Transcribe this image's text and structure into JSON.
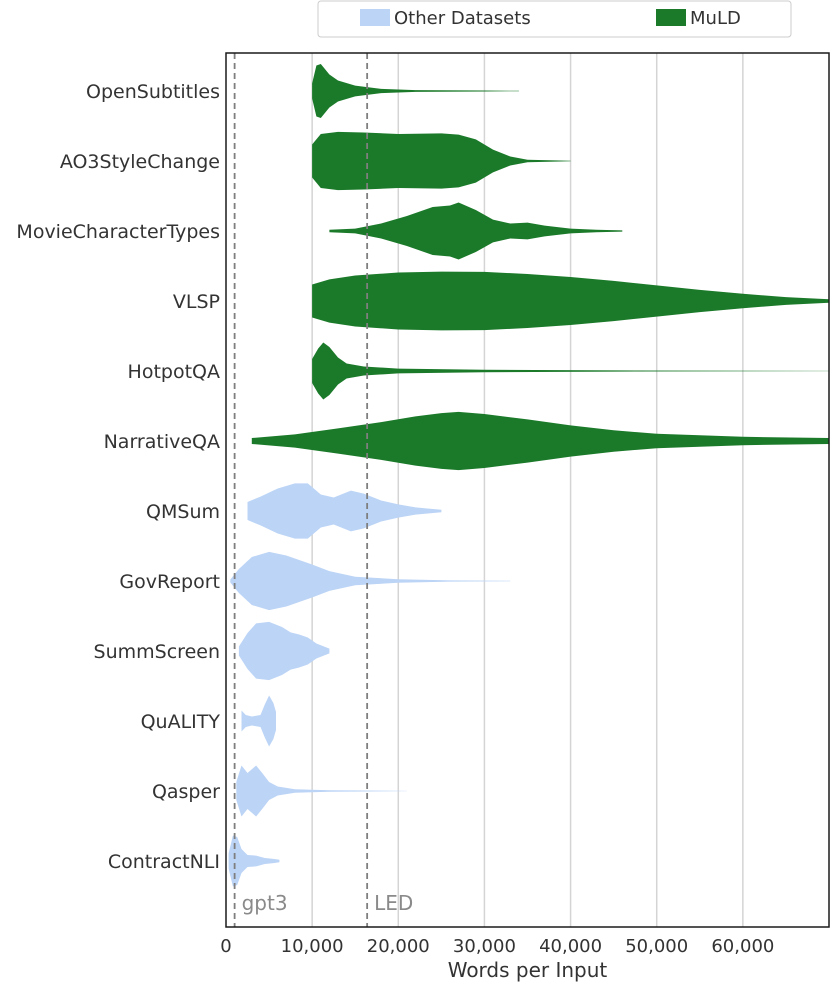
{
  "chart_data": {
    "type": "violin",
    "orientation": "horizontal",
    "xlabel": "Words per Input",
    "xlim": [
      0,
      70000
    ],
    "xticks": [
      0,
      10000,
      20000,
      30000,
      40000,
      50000,
      60000
    ],
    "xtick_labels": [
      "0",
      "10,000",
      "20,000",
      "30,000",
      "40,000",
      "50,000",
      "60,000"
    ],
    "grid": "vertical",
    "legend": {
      "placement": "top",
      "entries": [
        {
          "label": "Other Datasets",
          "color": "#bcd4f6"
        },
        {
          "label": "MuLD",
          "color": "#1b7a2a"
        }
      ]
    },
    "reference_lines": [
      {
        "label": "gpt3",
        "x": 1000
      },
      {
        "label": "LED",
        "x": 16384
      }
    ],
    "categories": [
      "OpenSubtitles",
      "AO3StyleChange",
      "MovieCharacterTypes",
      "VLSP",
      "HotpotQA",
      "NarrativeQA",
      "QMSum",
      "GovReport",
      "SummScreen",
      "QuALITY",
      "Qasper",
      "ContractNLI"
    ],
    "series": [
      {
        "group": "MuLD",
        "category": "OpenSubtitles",
        "color": "#1b7a2a",
        "profile": [
          [
            10000,
            0.25
          ],
          [
            10500,
            0.85
          ],
          [
            11000,
            0.9
          ],
          [
            12000,
            0.55
          ],
          [
            13000,
            0.35
          ],
          [
            15000,
            0.18
          ],
          [
            18000,
            0.07
          ],
          [
            22000,
            0.03
          ],
          [
            30000,
            0.015
          ],
          [
            34000,
            0.005
          ]
        ]
      },
      {
        "group": "MuLD",
        "category": "AO3StyleChange",
        "color": "#1b7a2a",
        "profile": [
          [
            10000,
            0.55
          ],
          [
            11000,
            0.9
          ],
          [
            13000,
            0.97
          ],
          [
            16000,
            0.95
          ],
          [
            20000,
            0.9
          ],
          [
            25000,
            0.92
          ],
          [
            27000,
            0.88
          ],
          [
            29000,
            0.72
          ],
          [
            31000,
            0.38
          ],
          [
            33000,
            0.15
          ],
          [
            35000,
            0.04
          ],
          [
            40000,
            0.005
          ]
        ]
      },
      {
        "group": "MuLD",
        "category": "MovieCharacterTypes",
        "color": "#1b7a2a",
        "profile": [
          [
            12000,
            0.04
          ],
          [
            15000,
            0.08
          ],
          [
            18000,
            0.25
          ],
          [
            21000,
            0.5
          ],
          [
            24000,
            0.8
          ],
          [
            26000,
            0.85
          ],
          [
            27000,
            0.95
          ],
          [
            29000,
            0.7
          ],
          [
            31000,
            0.38
          ],
          [
            33000,
            0.25
          ],
          [
            35000,
            0.28
          ],
          [
            37000,
            0.18
          ],
          [
            40000,
            0.08
          ],
          [
            43000,
            0.04
          ],
          [
            46000,
            0.02
          ]
        ]
      },
      {
        "group": "MuLD",
        "category": "VLSP",
        "color": "#1b7a2a",
        "profile": [
          [
            10000,
            0.55
          ],
          [
            12000,
            0.72
          ],
          [
            15000,
            0.85
          ],
          [
            20000,
            0.95
          ],
          [
            25000,
            0.98
          ],
          [
            30000,
            0.97
          ],
          [
            35000,
            0.9
          ],
          [
            40000,
            0.8
          ],
          [
            45000,
            0.67
          ],
          [
            50000,
            0.52
          ],
          [
            55000,
            0.37
          ],
          [
            60000,
            0.24
          ],
          [
            65000,
            0.13
          ],
          [
            70000,
            0.06
          ]
        ]
      },
      {
        "group": "MuLD",
        "category": "HotpotQA",
        "color": "#1b7a2a",
        "profile": [
          [
            10000,
            0.4
          ],
          [
            10700,
            0.75
          ],
          [
            11300,
            0.95
          ],
          [
            12000,
            0.8
          ],
          [
            13000,
            0.45
          ],
          [
            14000,
            0.25
          ],
          [
            16000,
            0.15
          ],
          [
            20000,
            0.08
          ],
          [
            30000,
            0.04
          ],
          [
            45000,
            0.02
          ],
          [
            70000,
            0.005
          ]
        ]
      },
      {
        "group": "MuLD",
        "category": "NarrativeQA",
        "color": "#1b7a2a",
        "profile": [
          [
            3000,
            0.1
          ],
          [
            8000,
            0.22
          ],
          [
            13000,
            0.42
          ],
          [
            18000,
            0.63
          ],
          [
            22000,
            0.82
          ],
          [
            25000,
            0.93
          ],
          [
            27000,
            0.97
          ],
          [
            30000,
            0.9
          ],
          [
            35000,
            0.72
          ],
          [
            40000,
            0.52
          ],
          [
            45000,
            0.36
          ],
          [
            50000,
            0.24
          ],
          [
            60000,
            0.14
          ],
          [
            70000,
            0.1
          ]
        ]
      },
      {
        "group": "Other Datasets",
        "category": "QMSum",
        "color": "#bcd4f6",
        "profile": [
          [
            2500,
            0.3
          ],
          [
            4000,
            0.48
          ],
          [
            6000,
            0.75
          ],
          [
            8000,
            0.92
          ],
          [
            9500,
            0.92
          ],
          [
            11000,
            0.55
          ],
          [
            12500,
            0.45
          ],
          [
            14500,
            0.68
          ],
          [
            16000,
            0.58
          ],
          [
            18000,
            0.35
          ],
          [
            20000,
            0.22
          ],
          [
            22000,
            0.12
          ],
          [
            25000,
            0.04
          ]
        ]
      },
      {
        "group": "Other Datasets",
        "category": "GovReport",
        "color": "#bcd4f6",
        "profile": [
          [
            500,
            0.05
          ],
          [
            1500,
            0.4
          ],
          [
            3000,
            0.8
          ],
          [
            5000,
            0.97
          ],
          [
            7000,
            0.85
          ],
          [
            10000,
            0.55
          ],
          [
            12000,
            0.33
          ],
          [
            15000,
            0.14
          ],
          [
            20000,
            0.06
          ],
          [
            26000,
            0.02
          ],
          [
            33000,
            0.01
          ]
        ]
      },
      {
        "group": "Other Datasets",
        "category": "SummScreen",
        "color": "#bcd4f6",
        "profile": [
          [
            1500,
            0.15
          ],
          [
            2500,
            0.6
          ],
          [
            3500,
            0.92
          ],
          [
            5000,
            0.97
          ],
          [
            6500,
            0.8
          ],
          [
            7500,
            0.62
          ],
          [
            8500,
            0.55
          ],
          [
            9500,
            0.45
          ],
          [
            10500,
            0.25
          ],
          [
            12000,
            0.08
          ]
        ]
      },
      {
        "group": "Other Datasets",
        "category": "QuALITY",
        "color": "#bcd4f6",
        "profile": [
          [
            1800,
            0.35
          ],
          [
            2300,
            0.2
          ],
          [
            3000,
            0.15
          ],
          [
            4000,
            0.2
          ],
          [
            4500,
            0.55
          ],
          [
            5000,
            0.85
          ],
          [
            5500,
            0.6
          ],
          [
            5800,
            0.3
          ]
        ]
      },
      {
        "group": "Other Datasets",
        "category": "Qasper",
        "color": "#bcd4f6",
        "profile": [
          [
            1200,
            0.3
          ],
          [
            1800,
            0.85
          ],
          [
            2500,
            0.6
          ],
          [
            3500,
            0.85
          ],
          [
            4200,
            0.6
          ],
          [
            5000,
            0.3
          ],
          [
            6000,
            0.15
          ],
          [
            8000,
            0.06
          ],
          [
            12000,
            0.025
          ],
          [
            18000,
            0.012
          ],
          [
            21000,
            0.005
          ]
        ]
      },
      {
        "group": "Other Datasets",
        "category": "ContractNLI",
        "color": "#bcd4f6",
        "profile": [
          [
            300,
            0.25
          ],
          [
            800,
            0.85
          ],
          [
            1300,
            0.8
          ],
          [
            1800,
            0.4
          ],
          [
            2500,
            0.2
          ],
          [
            3500,
            0.18
          ],
          [
            4500,
            0.1
          ],
          [
            5500,
            0.07
          ],
          [
            6200,
            0.04
          ]
        ]
      }
    ]
  }
}
